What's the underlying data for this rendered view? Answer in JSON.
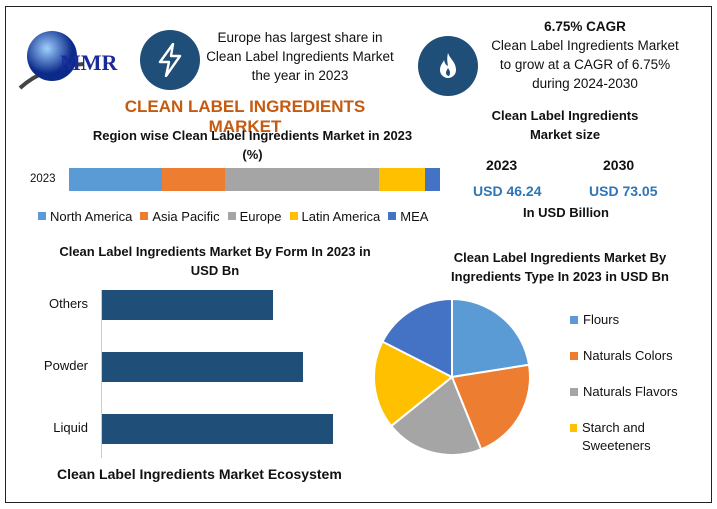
{
  "header": {
    "logo_text": "MMR",
    "highlight1": "Europe has largest share in Clean Label Ingredients Market the year in 2023",
    "cagr_title": "6.75% CAGR",
    "cagr_text": "Clean Label Ingredients Market to grow at a CAGR of 6.75% during 2024-2030",
    "main_title": "CLEAN LABEL INGREDIENTS MARKET"
  },
  "market_size": {
    "title": "Clean Label Ingredients Market size",
    "year1": "2023",
    "year2": "2030",
    "value1": "USD 46.24",
    "value2": "USD 73.05",
    "unit": "In USD Billion"
  },
  "footer_text": "Clean Label Ingredients Market Ecosystem",
  "chart_data": [
    {
      "type": "bar",
      "stacked": true,
      "orientation": "horizontal",
      "title": "Region wise Clean Label Ingredients Market in 2023 (%)",
      "categories": [
        "2023"
      ],
      "legend": "bottom",
      "series": [
        {
          "name": "North America",
          "values": [
            25
          ],
          "color": "#5b9bd5"
        },
        {
          "name": "Asia Pacific",
          "values": [
            17
          ],
          "color": "#ed7d31"
        },
        {
          "name": "Europe",
          "values": [
            41.5
          ],
          "color": "#a5a5a5"
        },
        {
          "name": "Latin America",
          "values": [
            12.5
          ],
          "color": "#ffc000"
        },
        {
          "name": "MEA",
          "values": [
            4
          ],
          "color": "#4472c4"
        }
      ]
    },
    {
      "type": "bar",
      "orientation": "horizontal",
      "title": "Clean Label Ingredients Market By Form In 2023 in USD Bn",
      "categories": [
        "Others",
        "Powder",
        "Liquid"
      ],
      "values": [
        74,
        87,
        100
      ],
      "color": "#1f4e79"
    },
    {
      "type": "pie",
      "title": "Clean Label Ingredients Market By Ingredients Type In 2023 in USD Bn",
      "legend": "right",
      "labels": [
        "Flours",
        "Naturals Colors",
        "Naturals Flavors",
        "Starch and Sweeteners",
        ""
      ],
      "values": [
        22.5,
        21.4,
        20.3,
        18.3,
        17.5
      ],
      "colors": [
        "#5b9bd5",
        "#ed7d31",
        "#a5a5a5",
        "#ffc000",
        "#4472c4"
      ]
    }
  ]
}
